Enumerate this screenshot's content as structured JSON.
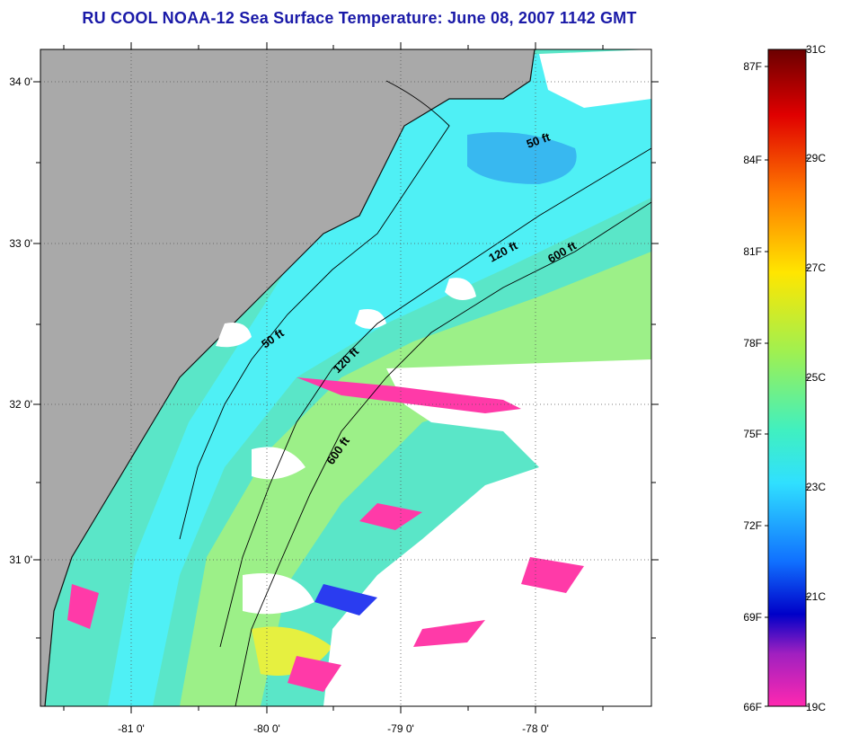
{
  "title": "RU COOL  NOAA-12  Sea Surface Temperature:  June 08, 2007 1142 GMT",
  "lat_labels": [
    "34 0'",
    "33 0'",
    "32 0'",
    "31 0'"
  ],
  "lon_labels": [
    "-81 0'",
    "-80 0'",
    "-79 0'",
    "-78 0'"
  ],
  "contour_labels": [
    "50 ft",
    "120 ft",
    "600 ft",
    "50 ft",
    "120 ft",
    "600 ft"
  ],
  "colorbar": {
    "fahrenheit": [
      "87F",
      "84F",
      "81F",
      "78F",
      "75F",
      "72F",
      "69F",
      "66F"
    ],
    "celsius": [
      "31C",
      "29C",
      "27C",
      "25C",
      "23C",
      "21C",
      "19C"
    ]
  },
  "colors": {
    "title": "#1a1aa8",
    "land": "#a9a9a9",
    "cloud": "#ffffff",
    "water_cool": "#4fe8f0",
    "water_warm": "#a6f07a"
  }
}
